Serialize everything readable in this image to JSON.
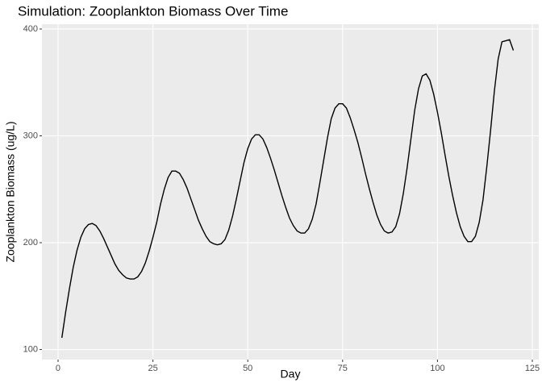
{
  "chart_data": {
    "type": "line",
    "title": "Simulation: Zooplankton Biomass Over Time",
    "x_label": "Day",
    "y_label": "Zooplankton Biomass (ug/L)",
    "x": [
      1,
      2,
      3,
      4,
      5,
      6,
      7,
      8,
      9,
      10,
      11,
      12,
      13,
      14,
      15,
      16,
      17,
      18,
      19,
      20,
      21,
      22,
      23,
      24,
      25,
      26,
      27,
      28,
      29,
      30,
      31,
      32,
      33,
      34,
      35,
      36,
      37,
      38,
      39,
      40,
      41,
      42,
      43,
      44,
      45,
      46,
      47,
      48,
      49,
      50,
      51,
      52,
      53,
      54,
      55,
      56,
      57,
      58,
      59,
      60,
      61,
      62,
      63,
      64,
      65,
      66,
      67,
      68,
      69,
      70,
      71,
      72,
      73,
      74,
      75,
      76,
      77,
      78,
      79,
      80,
      81,
      82,
      83,
      84,
      85,
      86,
      87,
      88,
      89,
      90,
      91,
      92,
      93,
      94,
      95,
      96,
      97,
      98,
      99,
      100,
      101,
      102,
      103,
      104,
      105,
      106,
      107,
      108,
      109,
      110,
      111,
      112,
      113,
      114,
      115,
      116,
      117,
      118,
      119,
      120
    ],
    "series": [
      {
        "color": "#000000",
        "values": [
          111,
          135,
          157,
          177,
          193,
          205,
          213,
          217,
          218,
          216,
          211,
          204,
          196,
          188,
          180,
          174,
          170,
          167,
          166,
          166,
          168,
          173,
          181,
          192,
          205,
          219,
          236,
          250,
          261,
          267,
          267,
          265,
          259,
          251,
          241,
          231,
          221,
          213,
          206,
          201,
          199,
          198,
          199,
          203,
          212,
          225,
          241,
          258,
          275,
          288,
          297,
          301,
          301,
          297,
          289,
          279,
          268,
          256,
          244,
          233,
          223,
          216,
          211,
          209,
          209,
          213,
          222,
          236,
          256,
          277,
          298,
          316,
          326,
          330,
          330,
          326,
          317,
          306,
          294,
          280,
          265,
          251,
          238,
          226,
          217,
          211,
          209,
          210,
          215,
          227,
          246,
          270,
          297,
          324,
          344,
          356,
          358,
          352,
          339,
          322,
          303,
          282,
          262,
          244,
          228,
          215,
          206,
          201,
          201,
          206,
          219,
          240,
          271,
          305,
          342,
          372,
          388,
          389,
          390,
          380
        ]
      }
    ],
    "xlim": [
      -4.25,
      126.7
    ],
    "ylim": [
      90.6,
      404.5
    ],
    "xticks": [
      0,
      25,
      50,
      75,
      100,
      125
    ],
    "yticks": [
      100,
      200,
      300,
      400
    ],
    "grid": true
  }
}
